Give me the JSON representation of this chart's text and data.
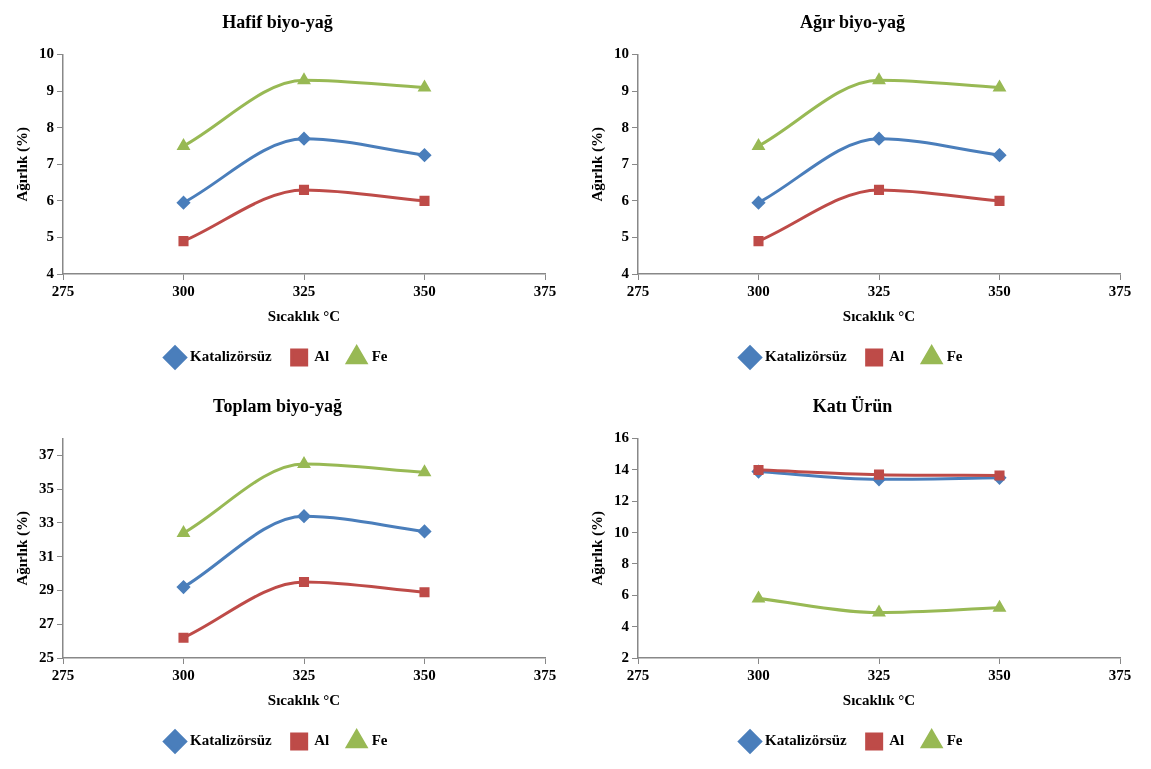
{
  "chart_data": [
    {
      "type": "line",
      "title": "Hafif biyo-yağ",
      "xlabel": "Sıcaklık °C",
      "ylabel": "Ağırlık (%)",
      "x": [
        300,
        325,
        350
      ],
      "xlim": [
        275,
        375
      ],
      "xticks": [
        275,
        300,
        325,
        350,
        375
      ],
      "ylim": [
        4,
        10
      ],
      "yticks": [
        4,
        5,
        6,
        7,
        8,
        9,
        10
      ],
      "grid": false,
      "legend": "bottom",
      "series": [
        {
          "name": "Katalizörsüz",
          "color": "#4a7ebb",
          "marker": "diamond",
          "values": [
            5.95,
            7.7,
            7.25
          ]
        },
        {
          "name": "Al",
          "color": "#be4b48",
          "marker": "square",
          "values": [
            4.9,
            6.3,
            6.0
          ]
        },
        {
          "name": "Fe",
          "color": "#98b954",
          "marker": "triangle",
          "values": [
            7.5,
            9.3,
            9.1
          ]
        }
      ]
    },
    {
      "type": "line",
      "title": "Ağır biyo-yağ",
      "xlabel": "Sıcaklık °C",
      "ylabel": "Ağırlık (%)",
      "x": [
        300,
        325,
        350
      ],
      "xlim": [
        275,
        375
      ],
      "xticks": [
        275,
        300,
        325,
        350,
        375
      ],
      "ylim": [
        4,
        10
      ],
      "yticks": [
        4,
        5,
        6,
        7,
        8,
        9,
        10
      ],
      "grid": false,
      "legend": "bottom",
      "series": [
        {
          "name": "Katalizörsüz",
          "color": "#4a7ebb",
          "marker": "diamond",
          "values": [
            5.95,
            7.7,
            7.25
          ]
        },
        {
          "name": "Al",
          "color": "#be4b48",
          "marker": "square",
          "values": [
            4.9,
            6.3,
            6.0
          ]
        },
        {
          "name": "Fe",
          "color": "#98b954",
          "marker": "triangle",
          "values": [
            7.5,
            9.3,
            9.1
          ]
        }
      ]
    },
    {
      "type": "line",
      "title": "Toplam biyo-yağ",
      "xlabel": "Sıcaklık °C",
      "ylabel": "Ağırlık (%)",
      "x": [
        300,
        325,
        350
      ],
      "xlim": [
        275,
        375
      ],
      "xticks": [
        275,
        300,
        325,
        350,
        375
      ],
      "ylim": [
        25,
        38
      ],
      "yticks": [
        25,
        27,
        29,
        31,
        33,
        35,
        37
      ],
      "grid": false,
      "legend": "bottom",
      "series": [
        {
          "name": "Katalizörsüz",
          "color": "#4a7ebb",
          "marker": "diamond",
          "values": [
            29.2,
            33.4,
            32.5
          ]
        },
        {
          "name": "Al",
          "color": "#be4b48",
          "marker": "square",
          "values": [
            26.2,
            29.5,
            28.9
          ]
        },
        {
          "name": "Fe",
          "color": "#98b954",
          "marker": "triangle",
          "values": [
            32.4,
            36.5,
            36.0
          ]
        }
      ]
    },
    {
      "type": "line",
      "title": "Katı Ürün",
      "xlabel": "Sıcaklık °C",
      "ylabel": "Ağırlık (%)",
      "x": [
        300,
        325,
        350
      ],
      "xlim": [
        275,
        375
      ],
      "xticks": [
        275,
        300,
        325,
        350,
        375
      ],
      "ylim": [
        2,
        16
      ],
      "yticks": [
        2,
        4,
        6,
        8,
        10,
        12,
        14,
        16
      ],
      "grid": false,
      "legend": "bottom",
      "series": [
        {
          "name": "Katalizörsüz",
          "color": "#4a7ebb",
          "marker": "diamond",
          "values": [
            13.9,
            13.4,
            13.5
          ]
        },
        {
          "name": "Al",
          "color": "#be4b48",
          "marker": "square",
          "values": [
            14.0,
            13.7,
            13.65
          ]
        },
        {
          "name": "Fe",
          "color": "#98b954",
          "marker": "triangle",
          "values": [
            5.8,
            4.9,
            5.2
          ]
        }
      ]
    }
  ]
}
